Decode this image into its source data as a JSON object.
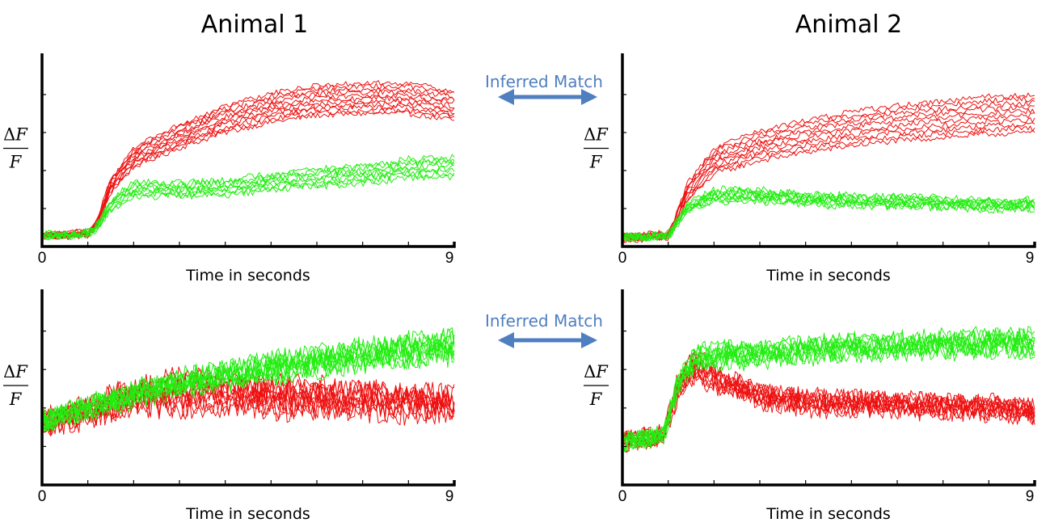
{
  "titles": {
    "left": "Animal 1",
    "right": "Animal 2"
  },
  "match_labels": {
    "top": "Inferred Match",
    "bottom": "Inferred Match"
  },
  "colors": {
    "red": "#ee1111",
    "green": "#22ee11",
    "arrow": "#4f7fc0"
  },
  "chart_data": [
    {
      "id": "a1-top",
      "type": "line",
      "xlabel": "Time in seconds",
      "ylabel": "ΔF/F",
      "xlim": [
        0,
        9
      ],
      "ylim": [
        0,
        1
      ],
      "xticks": [
        "0",
        "9"
      ],
      "grid": false,
      "series": [
        {
          "color": "red",
          "count": 11,
          "x": [
            0,
            0.5,
            1,
            1.2,
            1.5,
            2,
            3,
            4,
            5,
            6,
            7,
            8,
            9
          ],
          "y": [
            0.06,
            0.06,
            0.07,
            0.12,
            0.32,
            0.47,
            0.58,
            0.67,
            0.73,
            0.77,
            0.78,
            0.78,
            0.74
          ],
          "spread": 0.08,
          "noise": 0.015
        },
        {
          "color": "green",
          "count": 8,
          "x": [
            0,
            0.5,
            1,
            1.2,
            1.5,
            2,
            3,
            4,
            5,
            6,
            7,
            8,
            9
          ],
          "y": [
            0.06,
            0.06,
            0.07,
            0.1,
            0.22,
            0.3,
            0.3,
            0.31,
            0.34,
            0.36,
            0.38,
            0.41,
            0.42
          ],
          "spread": 0.05,
          "noise": 0.02
        }
      ]
    },
    {
      "id": "a2-top",
      "type": "line",
      "xlabel": "Time in seconds",
      "ylabel": "ΔF/F",
      "xlim": [
        0,
        9
      ],
      "ylim": [
        0,
        1
      ],
      "xticks": [
        "0",
        "9"
      ],
      "grid": false,
      "series": [
        {
          "color": "red",
          "count": 10,
          "x": [
            0,
            0.5,
            1,
            1.1,
            1.4,
            2,
            3,
            4,
            5,
            6,
            7,
            8,
            9
          ],
          "y": [
            0.05,
            0.05,
            0.06,
            0.1,
            0.28,
            0.45,
            0.53,
            0.58,
            0.62,
            0.65,
            0.67,
            0.69,
            0.7
          ],
          "spread": 0.1,
          "noise": 0.015
        },
        {
          "color": "green",
          "count": 9,
          "x": [
            0,
            0.5,
            1,
            1.1,
            1.4,
            2,
            3,
            4,
            5,
            6,
            7,
            8,
            9
          ],
          "y": [
            0.05,
            0.05,
            0.06,
            0.09,
            0.2,
            0.27,
            0.27,
            0.25,
            0.24,
            0.24,
            0.23,
            0.22,
            0.22
          ],
          "spread": 0.03,
          "noise": 0.022
        }
      ]
    },
    {
      "id": "a1-bottom",
      "type": "line",
      "xlabel": "Time in seconds",
      "ylabel": "ΔF/F",
      "xlim": [
        0,
        9
      ],
      "ylim": [
        0,
        1
      ],
      "xticks": [
        "0",
        "9"
      ],
      "grid": false,
      "series": [
        {
          "color": "red",
          "count": 10,
          "x": [
            0,
            1,
            2,
            3,
            4,
            5,
            6,
            7,
            8,
            9
          ],
          "y": [
            0.32,
            0.38,
            0.45,
            0.48,
            0.48,
            0.46,
            0.45,
            0.44,
            0.43,
            0.42
          ],
          "spread": 0.07,
          "noise": 0.07
        },
        {
          "color": "green",
          "count": 10,
          "x": [
            0,
            1,
            2,
            3,
            4,
            5,
            6,
            7,
            8,
            9
          ],
          "y": [
            0.33,
            0.4,
            0.47,
            0.53,
            0.57,
            0.61,
            0.64,
            0.67,
            0.7,
            0.72
          ],
          "spread": 0.05,
          "noise": 0.06
        }
      ]
    },
    {
      "id": "a2-bottom",
      "type": "line",
      "xlabel": "Time in seconds",
      "ylabel": "ΔF/F",
      "xlim": [
        0,
        9
      ],
      "ylim": [
        0,
        1
      ],
      "xticks": [
        "0",
        "9"
      ],
      "grid": false,
      "series": [
        {
          "color": "red",
          "count": 10,
          "x": [
            0,
            0.5,
            0.9,
            1.2,
            1.6,
            2,
            3,
            4,
            5,
            6,
            7,
            8,
            9
          ],
          "y": [
            0.22,
            0.24,
            0.26,
            0.5,
            0.62,
            0.56,
            0.46,
            0.43,
            0.42,
            0.42,
            0.41,
            0.4,
            0.38
          ],
          "spread": 0.05,
          "noise": 0.055
        },
        {
          "color": "green",
          "count": 10,
          "x": [
            0,
            0.5,
            0.9,
            1.2,
            1.6,
            2,
            3,
            4,
            5,
            6,
            7,
            8,
            9
          ],
          "y": [
            0.22,
            0.24,
            0.26,
            0.52,
            0.66,
            0.67,
            0.68,
            0.7,
            0.72,
            0.72,
            0.73,
            0.74,
            0.74
          ],
          "spread": 0.04,
          "noise": 0.05
        }
      ]
    }
  ]
}
